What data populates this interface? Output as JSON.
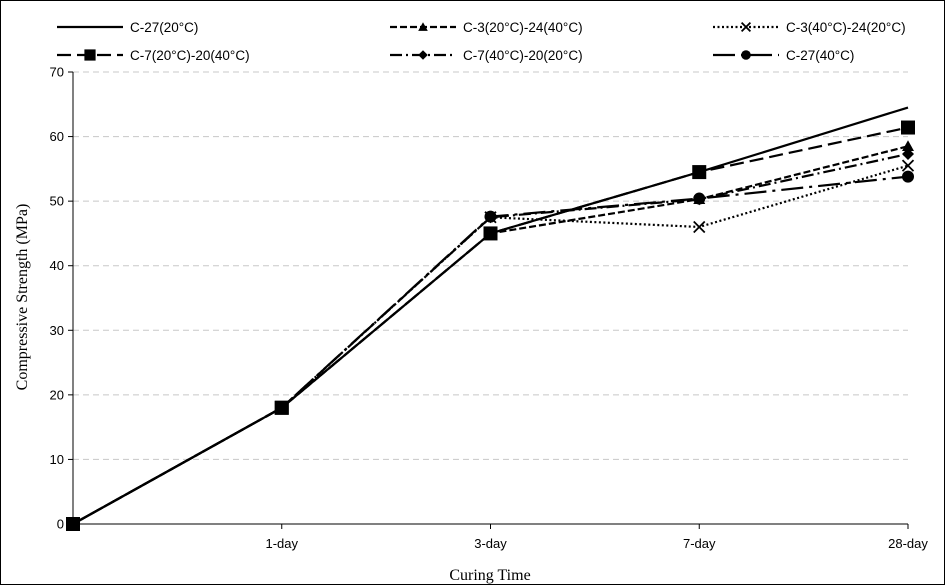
{
  "chart_data": {
    "type": "line",
    "xlabel": "Curing Time",
    "ylabel": "Compressive Strength (MPa)",
    "categories": [
      "",
      "1-day",
      "3-day",
      "7-day",
      "28-day"
    ],
    "ylim": [
      0,
      70
    ],
    "yticks": [
      "0",
      "10",
      "20",
      "30",
      "40",
      "50",
      "60",
      "70"
    ],
    "grid": "horizontal-dashed",
    "legend_position": "top",
    "series": [
      {
        "name": "C-27(20°C)",
        "values": [
          0,
          18,
          45,
          54.5,
          64.5
        ],
        "dash": "solid",
        "marker": "none",
        "hollow": false
      },
      {
        "name": "C-3(20°C)-24(40°C)",
        "values": [
          0,
          18,
          45,
          50.3,
          58.5
        ],
        "dash": "dash-short",
        "marker": "triangle",
        "hollow": false
      },
      {
        "name": "C-3(40°C)-24(20°C)",
        "values": [
          0,
          18,
          47.5,
          46,
          55.5
        ],
        "dash": "dot",
        "marker": "x",
        "hollow": false
      },
      {
        "name": "C-7(20°C)-20(40°C)",
        "values": [
          0,
          18,
          45,
          54.5,
          61.4
        ],
        "dash": "dash-long",
        "marker": "square",
        "hollow": false
      },
      {
        "name": "C-7(40°C)-20(20°C)",
        "values": [
          0,
          18,
          47.5,
          50.3,
          57.3
        ],
        "dash": "dash-dot",
        "marker": "diamond",
        "hollow": false
      },
      {
        "name": "C-27(40°C)",
        "values": [
          0,
          18,
          47.6,
          50.4,
          53.8
        ],
        "dash": "long-dash-dot",
        "marker": "circle",
        "hollow": false
      }
    ]
  }
}
